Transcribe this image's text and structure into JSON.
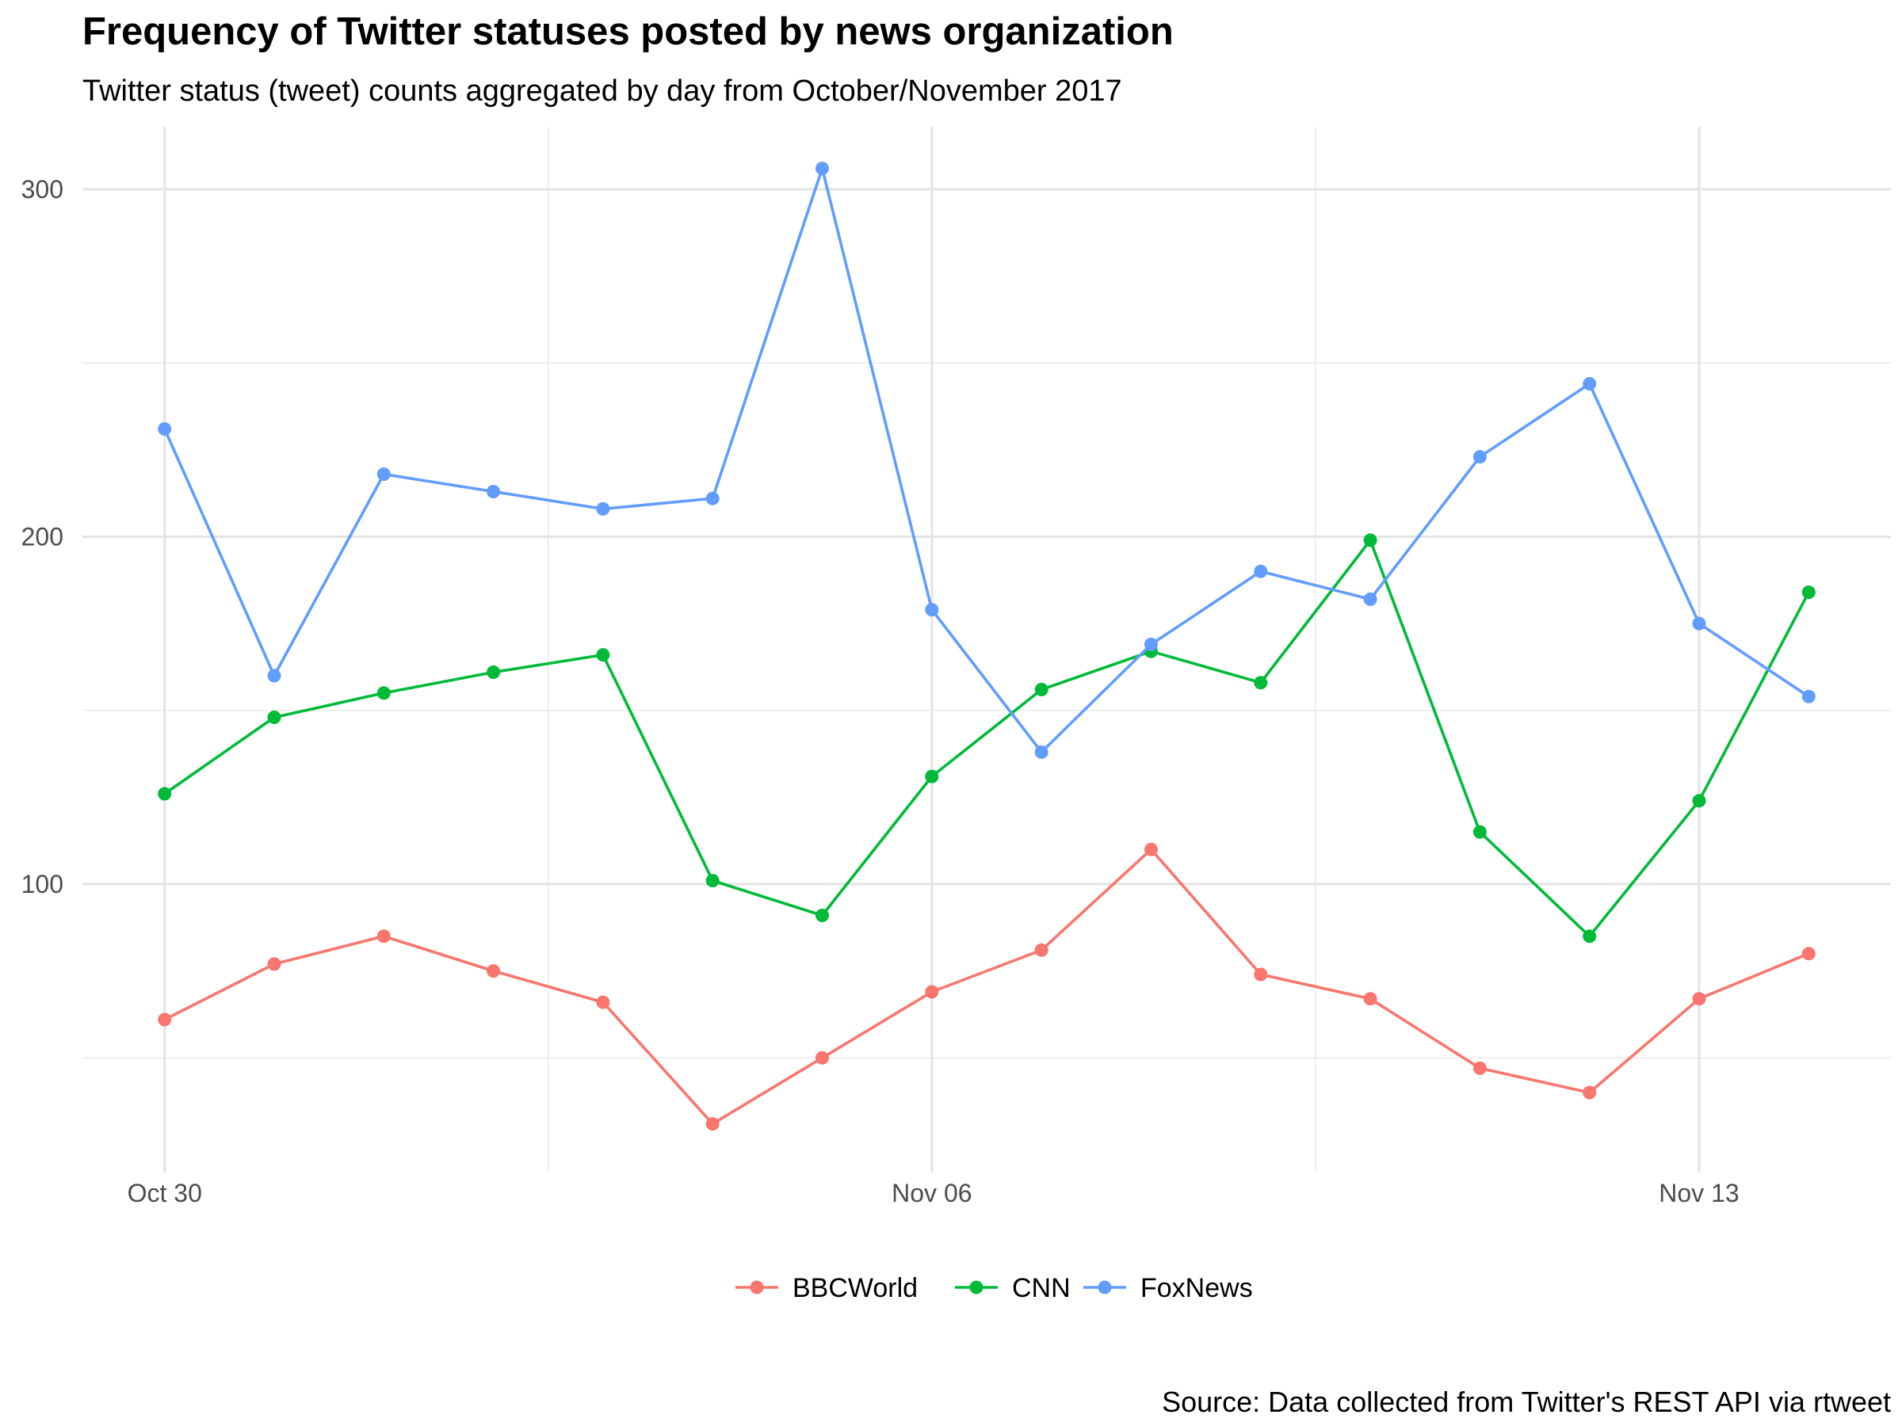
{
  "chart_data": {
    "type": "line",
    "title": "Frequency of Twitter statuses posted by news organization",
    "subtitle": "Twitter status (tweet) counts aggregated by day from October/November 2017",
    "caption": "Source: Data collected from Twitter's REST API via rtweet",
    "xlabel": "",
    "ylabel": "",
    "x": [
      "2017-10-30",
      "2017-10-31",
      "2017-11-01",
      "2017-11-02",
      "2017-11-03",
      "2017-11-04",
      "2017-11-05",
      "2017-11-06",
      "2017-11-07",
      "2017-11-08",
      "2017-11-09",
      "2017-11-10",
      "2017-11-11",
      "2017-11-12",
      "2017-11-13",
      "2017-11-14"
    ],
    "x_ticks": [
      {
        "date": "2017-10-30",
        "label": "Oct 30"
      },
      {
        "date": "2017-11-06",
        "label": "Nov 06"
      },
      {
        "date": "2017-11-13",
        "label": "Nov 13"
      }
    ],
    "x_minor_ticks": [
      "2017-11-02T12:00",
      "2017-11-09T12:00"
    ],
    "xlim": [
      "2017-10-29T06:00",
      "2017-11-14T18:00"
    ],
    "y_ticks": [
      100,
      200,
      300
    ],
    "y_minor_ticks": [
      50,
      150,
      250
    ],
    "ylim": [
      17,
      318
    ],
    "grid": true,
    "legend_position": "bottom",
    "series": [
      {
        "name": "BBCWorld",
        "color": "#F8766D",
        "values": [
          61,
          77,
          85,
          75,
          66,
          31,
          50,
          69,
          81,
          110,
          74,
          67,
          47,
          40,
          67,
          80
        ]
      },
      {
        "name": "CNN",
        "color": "#00BA38",
        "values": [
          126,
          148,
          155,
          161,
          166,
          101,
          91,
          131,
          156,
          167,
          158,
          199,
          115,
          85,
          124,
          184
        ]
      },
      {
        "name": "FoxNews",
        "color": "#619CFF",
        "values": [
          231,
          160,
          218,
          213,
          208,
          211,
          306,
          179,
          138,
          169,
          190,
          182,
          223,
          244,
          175,
          154
        ]
      }
    ]
  }
}
